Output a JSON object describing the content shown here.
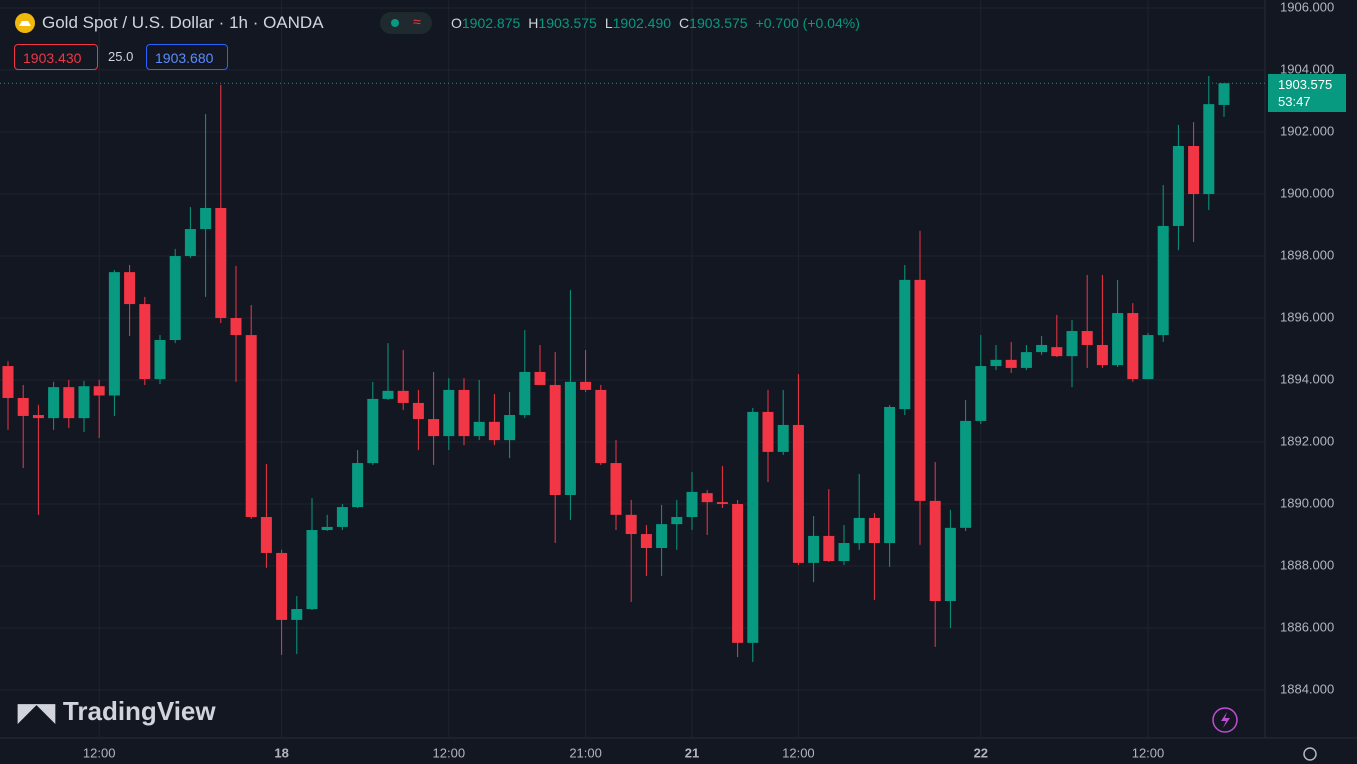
{
  "header": {
    "title": "Gold Spot / U.S. Dollar · 1h · OANDA",
    "ohlc": [
      {
        "key": "O",
        "value": "1902.875"
      },
      {
        "key": "H",
        "value": "1903.575"
      },
      {
        "key": "L",
        "value": "1902.490"
      },
      {
        "key": "C",
        "value": "1903.575"
      }
    ],
    "change": "+0.700 (+0.04%)",
    "bid": "1903.430",
    "spread": "25.0",
    "ask": "1903.680",
    "watermark": "TradingView",
    "countdown": "53:47"
  },
  "chart_data": {
    "type": "candlestick",
    "up_color": "#089981",
    "down_color": "#f23645",
    "grid": true,
    "categories": [
      null,
      null,
      null,
      null,
      null,
      null,
      "12:00",
      null,
      null,
      null,
      null,
      null,
      null,
      null,
      null,
      null,
      null,
      null,
      "18",
      null,
      null,
      null,
      null,
      null,
      null,
      null,
      null,
      null,
      null,
      "12:00",
      null,
      null,
      null,
      null,
      null,
      null,
      null,
      null,
      "21:00",
      null,
      null,
      null,
      null,
      null,
      null,
      "21",
      null,
      null,
      null,
      null,
      null,
      null,
      "12:00",
      null,
      null,
      null,
      null,
      null,
      null,
      null,
      null,
      null,
      null,
      null,
      "22",
      null,
      null,
      null,
      null,
      null,
      null,
      null,
      null,
      null,
      null,
      "12:00",
      null,
      null,
      null,
      null,
      null
    ],
    "open": [
      1894.45,
      1893.42,
      1892.87,
      1892.77,
      1893.77,
      1892.77,
      1893.8,
      1893.5,
      1897.48,
      1896.45,
      1894.03,
      1895.29,
      1898,
      1898.87,
      1899.55,
      1896,
      1895.45,
      1889.58,
      1888.42,
      1886.26,
      1886.61,
      1889.16,
      1889.26,
      1889.9,
      1891.32,
      1893.39,
      1893.65,
      1893.26,
      1892.74,
      1892.19,
      1893.68,
      1892.19,
      1892.65,
      1892.06,
      1892.87,
      1894.26,
      1893.84,
      1890.29,
      1893.94,
      1893.68,
      1891.32,
      1889.65,
      1889.03,
      1888.58,
      1889.35,
      1889.58,
      1890.35,
      1890.06,
      1890,
      1885.52,
      1892.97,
      1891.68,
      1892.55,
      1888.1,
      1888.97,
      1888.16,
      1888.74,
      1889.55,
      1888.74,
      1893.06,
      1897.23,
      1890.1,
      1886.87,
      1889.23,
      1892.68,
      1894.45,
      1894.65,
      1894.39,
      1894.9,
      1895.06,
      1894.77,
      1895.58,
      1895.13,
      1894.48,
      1896.16,
      1894.03,
      1895.45,
      1898.97,
      1901.55,
      1900,
      1902.875
    ],
    "high": [
      1894.6,
      1893.84,
      1893.2,
      1893.94,
      1894,
      1893.97,
      1894,
      1897.55,
      1897.71,
      1896.68,
      1895.45,
      1898.23,
      1899.58,
      1902.58,
      1903.52,
      1897.68,
      1896.42,
      1891.29,
      1888.52,
      1887.03,
      1890.19,
      1889.65,
      1890,
      1891.74,
      1893.94,
      1895.19,
      1894.97,
      1893.68,
      1894.26,
      1894.06,
      1894.06,
      1894,
      1893.55,
      1893.61,
      1895.61,
      1895.13,
      1894.9,
      1896.9,
      1894.97,
      1893.84,
      1892.06,
      1890.13,
      1889.32,
      1889.97,
      1890.13,
      1891.03,
      1890.45,
      1891.23,
      1890.13,
      1893.1,
      1893.68,
      1893.68,
      1894.19,
      1889.61,
      1890.48,
      1889.32,
      1890.97,
      1889.71,
      1893.19,
      1897.71,
      1898.81,
      1891.35,
      1889.81,
      1893.35,
      1895.45,
      1895.13,
      1895.23,
      1895.13,
      1895.42,
      1896.1,
      1895.94,
      1897.39,
      1897.39,
      1897.23,
      1896.48,
      1895.52,
      1900.29,
      1902.23,
      1902.32,
      1903.81,
      1903.575
    ],
    "low": [
      1892.39,
      1891.16,
      1889.65,
      1892.39,
      1892.45,
      1892.32,
      1892.13,
      1892.84,
      1895.42,
      1893.84,
      1893.87,
      1895.19,
      1897.94,
      1896.68,
      1895.84,
      1893.94,
      1889.52,
      1887.94,
      1885.13,
      1885.16,
      1886.58,
      1889.13,
      1889.16,
      1889.87,
      1891.26,
      1893.35,
      1893.03,
      1891.74,
      1891.26,
      1891.74,
      1891.9,
      1892.06,
      1891.9,
      1891.48,
      1892.77,
      1893.84,
      1888.74,
      1889.48,
      1893.61,
      1891.26,
      1889.16,
      1886.84,
      1887.68,
      1887.68,
      1888.52,
      1889.16,
      1889,
      1889.87,
      1885.06,
      1884.9,
      1890.71,
      1891.58,
      1888.03,
      1887.48,
      1888.13,
      1888.03,
      1888.52,
      1886.9,
      1887.97,
      1892.87,
      1888.68,
      1885.39,
      1886,
      1889.13,
      1892.58,
      1894.32,
      1894.23,
      1894.32,
      1894.81,
      1894.74,
      1893.77,
      1894.39,
      1894.39,
      1894.42,
      1893.94,
      1894.03,
      1895.23,
      1898.19,
      1898.45,
      1899.48,
      1902.49
    ],
    "close": [
      1893.42,
      1892.84,
      1892.77,
      1893.77,
      1892.77,
      1893.8,
      1893.5,
      1897.48,
      1896.45,
      1894.03,
      1895.29,
      1898,
      1898.87,
      1899.55,
      1896,
      1895.45,
      1889.58,
      1888.42,
      1886.26,
      1886.61,
      1889.16,
      1889.26,
      1889.9,
      1891.32,
      1893.39,
      1893.65,
      1893.26,
      1892.74,
      1892.19,
      1893.68,
      1892.19,
      1892.65,
      1892.06,
      1892.87,
      1894.26,
      1893.84,
      1890.29,
      1893.94,
      1893.68,
      1891.32,
      1889.65,
      1889.03,
      1888.58,
      1889.35,
      1889.58,
      1890.39,
      1890.06,
      1890,
      1885.52,
      1892.97,
      1891.68,
      1892.55,
      1888.1,
      1888.97,
      1888.16,
      1888.74,
      1889.55,
      1888.74,
      1893.13,
      1897.23,
      1890.1,
      1886.87,
      1889.23,
      1892.68,
      1894.45,
      1894.65,
      1894.39,
      1894.9,
      1895.13,
      1894.77,
      1895.58,
      1895.13,
      1894.48,
      1896.16,
      1894.03,
      1895.45,
      1898.97,
      1901.55,
      1900,
      1902.9,
      1903.575
    ],
    "ylim": [
      1882.45,
      1906.26
    ],
    "yticks": [
      {
        "value": 1906,
        "label": "1906.000"
      },
      {
        "value": 1904,
        "label": "1904.000"
      },
      {
        "value": 1902,
        "label": "1902.000"
      },
      {
        "value": 1900,
        "label": "1900.000"
      },
      {
        "value": 1898,
        "label": "1898.000"
      },
      {
        "value": 1896,
        "label": "1896.000"
      },
      {
        "value": 1894,
        "label": "1894.000"
      },
      {
        "value": 1892,
        "label": "1892.000"
      },
      {
        "value": 1890,
        "label": "1890.000"
      },
      {
        "value": 1888,
        "label": "1888.000"
      },
      {
        "value": 1886,
        "label": "1886.000"
      },
      {
        "value": 1884,
        "label": "1884.000"
      }
    ],
    "last_price": 1903.575
  }
}
